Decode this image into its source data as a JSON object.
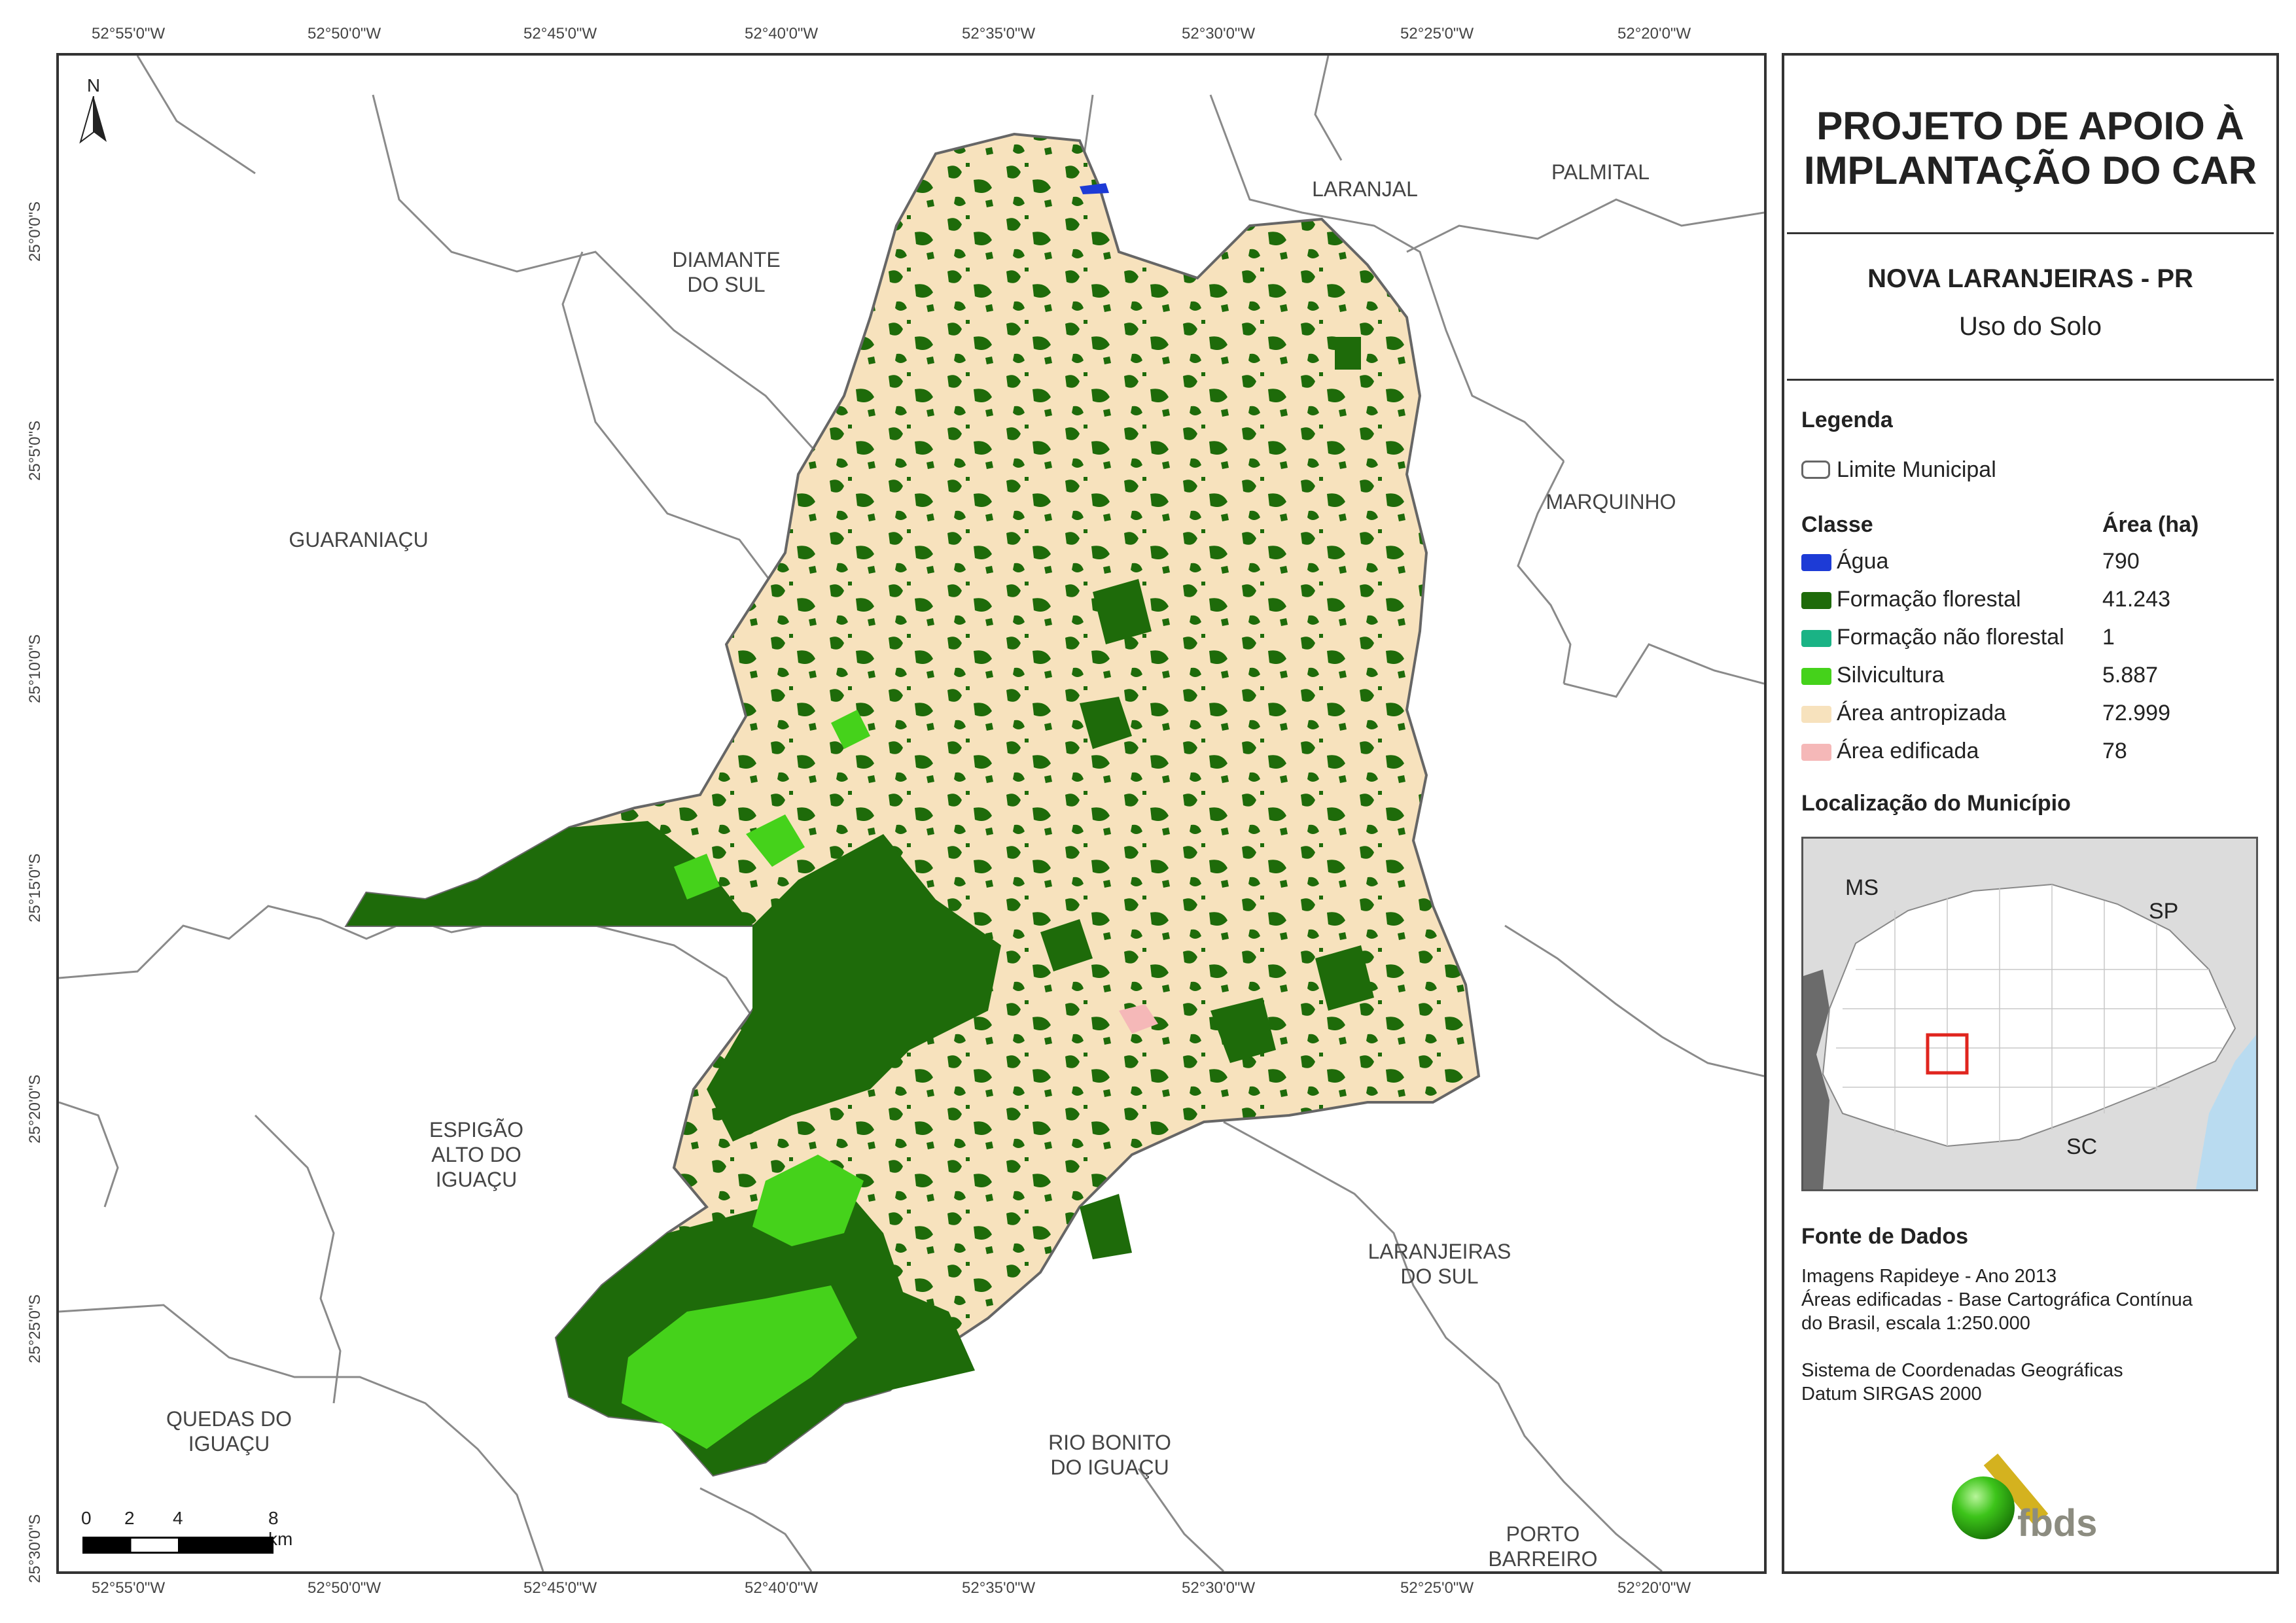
{
  "header": {
    "title_line1": "PROJETO DE APOIO À",
    "title_line2": "IMPLANTAÇÃO DO CAR",
    "municipality": "NOVA LARANJEIRAS - PR",
    "theme": "Uso do Solo"
  },
  "legend": {
    "heading": "Legenda",
    "boundary_label": "Limite Municipal",
    "class_header": "Classe",
    "area_header": "Área (ha)",
    "classes": [
      {
        "label": "Água",
        "area": "790",
        "color": "#1d3bd6"
      },
      {
        "label": "Formação florestal",
        "area": "41.243",
        "color": "#1e6b0a"
      },
      {
        "label": "Formação não florestal",
        "area": "1",
        "color": "#1ab385"
      },
      {
        "label": "Silvicultura",
        "area": "5.887",
        "color": "#45d21b"
      },
      {
        "label": "Área antropizada",
        "area": "72.999",
        "color": "#f7e2bd"
      },
      {
        "label": "Área edificada",
        "area": "78",
        "color": "#f5b8b8"
      }
    ]
  },
  "location": {
    "heading": "Localização do Município",
    "labels": [
      "MS",
      "SP",
      "SC"
    ]
  },
  "sources": {
    "heading": "Fonte de Dados",
    "lines": [
      "Imagens Rapideye - Ano 2013",
      "Áreas edificadas - Base Cartográfica Contínua",
      "do Brasil, escala 1:250.000",
      "",
      "Sistema de Coordenadas Geográficas",
      "Datum SIRGAS 2000"
    ]
  },
  "logo": {
    "text": "fbds"
  },
  "graticule": {
    "lon_labels": [
      "52°55'0\"W",
      "52°50'0\"W",
      "52°45'0\"W",
      "52°40'0\"W",
      "52°35'0\"W",
      "52°30'0\"W",
      "52°25'0\"W",
      "52°20'0\"W"
    ],
    "lat_labels": [
      "25°0'0\"S",
      "25°5'0\"S",
      "25°10'0\"S",
      "25°15'0\"S",
      "25°20'0\"S",
      "25°25'0\"S",
      "25°30'0\"S"
    ]
  },
  "neighbors": [
    "LARANJAL",
    "PALMITAL",
    "DIAMANTE\nDO SUL",
    "GUARANIAÇU",
    "MARQUINHO",
    "ESPIGÃO\nALTO DO\nIGUAÇU",
    "LARANJEIRAS\nDO SUL",
    "QUEDAS DO\nIGUAÇU",
    "RIO BONITO\nDO IGUAÇU",
    "PORTO\nBARREIRO"
  ],
  "north_arrow": {
    "label": "N"
  },
  "scale_bar": {
    "labels": [
      "0",
      "2",
      "4",
      "8 km"
    ]
  },
  "colors": {
    "frame": "#333333",
    "boundary": "#888888",
    "locator_bg": "#dcdcdc",
    "locator_ocean": "#b9dbf0",
    "locator_highlight": "#e0251e"
  }
}
